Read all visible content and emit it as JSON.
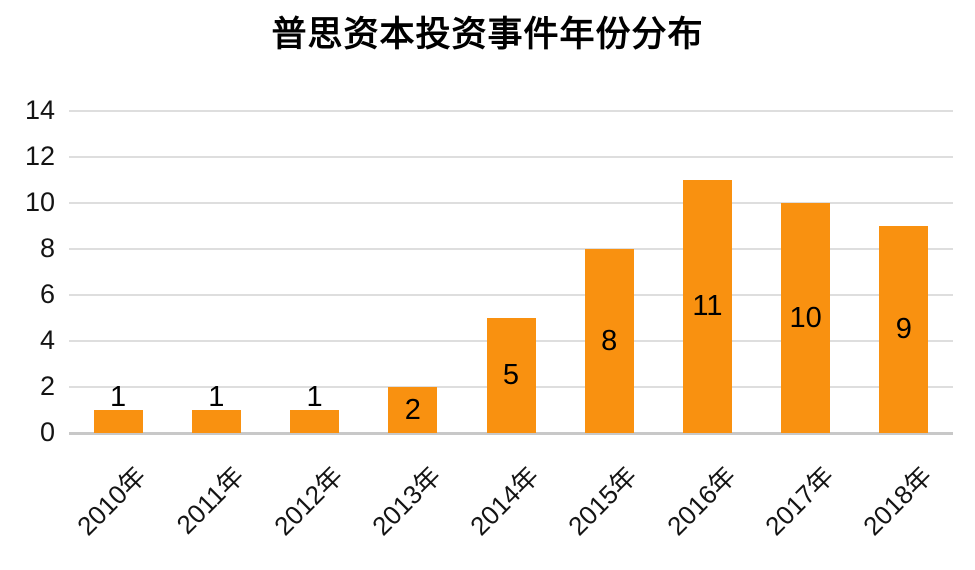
{
  "chart_data": {
    "type": "bar",
    "title": "普思资本投资事件年份分布",
    "categories": [
      "2010年",
      "2011年",
      "2012年",
      "2013年",
      "2014年",
      "2015年",
      "2016年",
      "2017年",
      "2018年"
    ],
    "values": [
      1,
      1,
      1,
      2,
      5,
      8,
      11,
      10,
      9
    ],
    "xlabel": "",
    "ylabel": "",
    "ylim": [
      0,
      14
    ],
    "yticks": [
      0,
      2,
      4,
      6,
      8,
      10,
      12,
      14
    ],
    "grid": "horizontal",
    "legend_position": "none",
    "data_labels": "inside-center; above bar when bar too short",
    "colors": {
      "bar": "#F99110",
      "gridline": "#DEDEDE",
      "baseline": "#C8C8C8",
      "text": "#000000",
      "background": "#FFFFFF"
    }
  }
}
